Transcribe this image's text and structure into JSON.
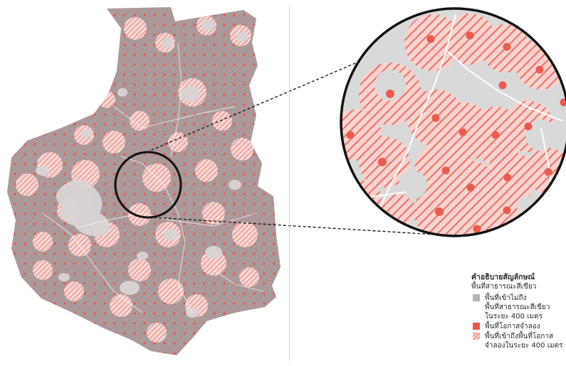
{
  "legend": {
    "title": "คำอธิบายสัญลักษณ์",
    "subtitle": "พื้นที่สาธารณะสีเขียว",
    "items": [
      {
        "label": "พื้นที่เข้าไม่ถึง\nพื้นที่สาธารณะสีเขียว\nในระยะ 400 เมตร",
        "swatch": "grey-fill"
      },
      {
        "label": "พื้นที่โอกาสจำลอง",
        "swatch": "red-fill"
      },
      {
        "label": "พื้นที่เข้าถึงพื้นที่โอกาส\nจำลองในระยะ 400 เมตร",
        "swatch": "red-hatch"
      }
    ]
  },
  "colors": {
    "unreachable": "#b3b3b3",
    "opportunity_point": "#ec5a4f",
    "hatch": "#f08a82",
    "map_base": "#a89c9c",
    "zoom_bg": "#d9d9d9",
    "outline": "#111111"
  }
}
